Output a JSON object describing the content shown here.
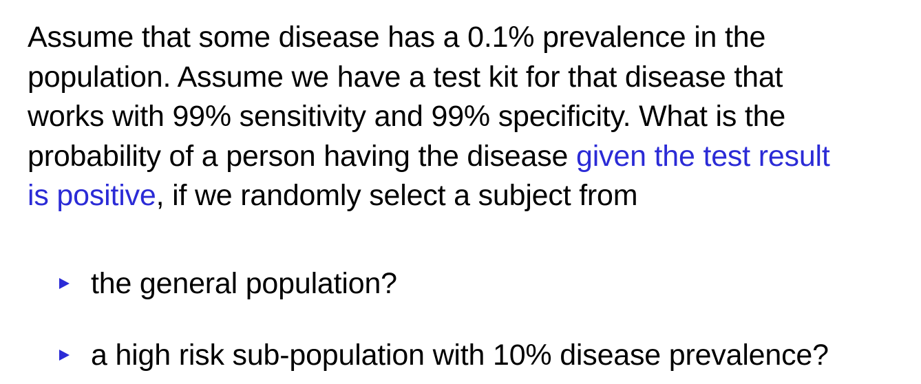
{
  "paragraph": {
    "line1": "Assume that some disease has a 0.1% prevalence in the",
    "line2": "population. Assume we have a test kit for that disease that",
    "line3": "works with 99% sensitivity and 99% specificity. What is the",
    "line4_before": "probability of a person having the disease ",
    "line4_highlight": "given the test result",
    "line5_highlight": "is positive",
    "line5_after": ", if we randomly select a subject from",
    "highlight_color": "#2b2bd6"
  },
  "bullets": [
    {
      "text": "the general population?"
    },
    {
      "text": "a high risk sub-population with 10% disease prevalence?"
    }
  ],
  "bullet_icon": "triangle-right-icon"
}
